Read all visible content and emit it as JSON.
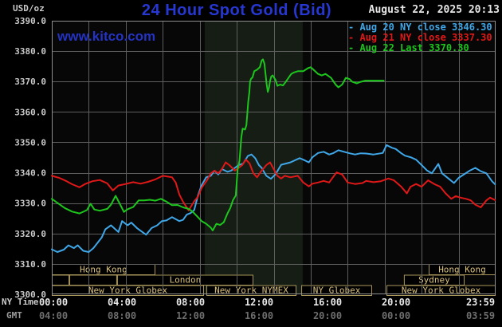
{
  "header": {
    "title": "24 Hour Spot Gold (Bid)",
    "datetime": "August 22, 2025 20:13",
    "watermark": "www.kitco.com"
  },
  "axes": {
    "units_label": "USD/oz",
    "ny_time_label": "NY Time",
    "gmt_label": "GMT",
    "y_tick_labels": [
      "3390.0",
      "3380.0",
      "3370.0",
      "3360.0",
      "3350.0",
      "3340.0",
      "3330.0",
      "3320.0",
      "3310.0",
      "3300.0"
    ],
    "ny_time_ticks": [
      "00:00",
      "04:00",
      "08:00",
      "12:00",
      "16:00",
      "20:00",
      "23:59"
    ],
    "gmt_ticks": [
      "04:00",
      "08:00",
      "12:00",
      "16:00",
      "20:00",
      "00:00",
      "03:59"
    ]
  },
  "legend": {
    "items": [
      {
        "text": "- Aug 20 NY close 3346.30",
        "series": "aug20"
      },
      {
        "text": "- Aug 21 NY close 3337.30",
        "series": "aug21"
      },
      {
        "text": "- Aug 22 Last 3370.30",
        "series": "aug22"
      }
    ]
  },
  "sessions": [
    {
      "row": 0,
      "start_hour": 0,
      "end_hour": 5.6,
      "label": "Hong Kong"
    },
    {
      "row": 0,
      "start_hour": 20.38,
      "end_hour": 24,
      "label": "Hong Kong"
    },
    {
      "row": 1,
      "start_hour": 0,
      "end_hour": 0.95,
      "label": ""
    },
    {
      "row": 1,
      "start_hour": 0.95,
      "end_hour": 3.53,
      "label": ""
    },
    {
      "row": 1,
      "start_hour": 3.53,
      "end_hour": 10.9,
      "label": "London"
    },
    {
      "row": 1,
      "start_hour": 19.04,
      "end_hour": 22.32,
      "label": "Sydney"
    },
    {
      "row": 2,
      "start_hour": 0,
      "end_hour": 8.23,
      "label": "New York Globex"
    },
    {
      "row": 2,
      "start_hour": 8.36,
      "end_hour": 13.23,
      "label": "New York NYMEX"
    },
    {
      "row": 2,
      "start_hour": 13.49,
      "end_hour": 17.32,
      "label": "NY Globex"
    },
    {
      "row": 2,
      "start_hour": 18.1,
      "end_hour": 24,
      "label": "New York Globex"
    }
  ],
  "colors": {
    "background": "#000000",
    "plot_bg": "#070707",
    "grid": "#5e5e5e",
    "plot_border": "#8f8f8f",
    "shaded_region": "#151d15",
    "title_text": "#2737d2",
    "watermark_text": "#2433c4",
    "datetime_text": "#e6e6e6",
    "axis_text": "#c9c9c9",
    "time_text": "#e8e8e8",
    "gmt_text": "#6e6e6e",
    "gmt_label_text": "#9c9c9c",
    "session_border": "#a8965a",
    "session_text": "#d9c17f",
    "aug20": "#3fa7e8",
    "aug21": "#e01818",
    "aug22": "#1dc51d"
  },
  "chart_data": {
    "type": "line",
    "title": "24 Hour Spot Gold (Bid)",
    "ylabel": "USD/oz",
    "x_unit": "hours NY Time",
    "x_range": [
      0,
      24
    ],
    "y_range": [
      3300,
      3390
    ],
    "y_tick_step": 10,
    "x_grid_step_hours": 2,
    "grid": true,
    "legend_position": "top-right",
    "shaded_span_hours": [
      8.27,
      13.57
    ],
    "series": [
      {
        "name": "Aug 20 NY close",
        "close": 3346.3,
        "color_key": "aug20",
        "points": [
          [
            0,
            3314.8
          ],
          [
            0.3,
            3313.9
          ],
          [
            0.65,
            3314.7
          ],
          [
            0.9,
            3316.1
          ],
          [
            1.2,
            3315.2
          ],
          [
            1.4,
            3316.1
          ],
          [
            1.7,
            3314.3
          ],
          [
            2,
            3313.9
          ],
          [
            2.25,
            3315.2
          ],
          [
            2.7,
            3318.7
          ],
          [
            2.9,
            3321.4
          ],
          [
            3.2,
            3322.7
          ],
          [
            3.45,
            3321.3
          ],
          [
            3.6,
            3320.5
          ],
          [
            3.8,
            3324.1
          ],
          [
            4.1,
            3322.7
          ],
          [
            4.3,
            3323.6
          ],
          [
            4.6,
            3321.8
          ],
          [
            4.9,
            3320.5
          ],
          [
            5.1,
            3319.6
          ],
          [
            5.4,
            3321.8
          ],
          [
            5.7,
            3322.7
          ],
          [
            5.95,
            3324.1
          ],
          [
            6.2,
            3324.3
          ],
          [
            6.5,
            3325.4
          ],
          [
            6.9,
            3324.1
          ],
          [
            7.1,
            3324.5
          ],
          [
            7.3,
            3326.2
          ],
          [
            7.5,
            3326.7
          ],
          [
            7.7,
            3327.7
          ],
          [
            7.9,
            3332.4
          ],
          [
            8.1,
            3335.9
          ],
          [
            8.35,
            3338.5
          ],
          [
            8.6,
            3339
          ],
          [
            8.8,
            3340.7
          ],
          [
            9,
            3339.4
          ],
          [
            9.2,
            3341.2
          ],
          [
            9.5,
            3340.3
          ],
          [
            9.7,
            3340.7
          ],
          [
            9.9,
            3341.6
          ],
          [
            10.1,
            3342.5
          ],
          [
            10.35,
            3343
          ],
          [
            10.6,
            3345.5
          ],
          [
            10.8,
            3346
          ],
          [
            11,
            3344.8
          ],
          [
            11.2,
            3342.5
          ],
          [
            11.35,
            3341.6
          ],
          [
            11.6,
            3339
          ],
          [
            11.85,
            3338
          ],
          [
            12.1,
            3339.5
          ],
          [
            12.4,
            3342.6
          ],
          [
            12.9,
            3343.4
          ],
          [
            13.4,
            3344.8
          ],
          [
            13.6,
            3344.3
          ],
          [
            13.9,
            3343.4
          ],
          [
            14.1,
            3345.1
          ],
          [
            14.4,
            3346.5
          ],
          [
            14.7,
            3346.9
          ],
          [
            15,
            3346
          ],
          [
            15.2,
            3346.4
          ],
          [
            15.5,
            3347.4
          ],
          [
            15.8,
            3346.9
          ],
          [
            16.1,
            3346.4
          ],
          [
            16.4,
            3346
          ],
          [
            16.7,
            3346.4
          ],
          [
            17,
            3346.3
          ],
          [
            17.4,
            3346
          ],
          [
            17.9,
            3346.5
          ],
          [
            18.1,
            3349.1
          ],
          [
            18.4,
            3348.2
          ],
          [
            18.6,
            3347.8
          ],
          [
            18.9,
            3346.4
          ],
          [
            19.1,
            3345.6
          ],
          [
            19.4,
            3345.1
          ],
          [
            19.7,
            3344.3
          ],
          [
            20,
            3342.5
          ],
          [
            20.3,
            3340.7
          ],
          [
            20.55,
            3339.8
          ],
          [
            20.9,
            3342.9
          ],
          [
            21.1,
            3339.8
          ],
          [
            21.45,
            3338.1
          ],
          [
            21.75,
            3336.6
          ],
          [
            22,
            3338.3
          ],
          [
            22.3,
            3339.5
          ],
          [
            22.6,
            3340.7
          ],
          [
            22.9,
            3341.6
          ],
          [
            23.2,
            3340.5
          ],
          [
            23.5,
            3339.8
          ],
          [
            23.8,
            3337.2
          ],
          [
            23.97,
            3336.2
          ]
        ]
      },
      {
        "name": "Aug 21 NY close",
        "close": 3337.3,
        "color_key": "aug21",
        "points": [
          [
            0,
            3339
          ],
          [
            0.4,
            3338.3
          ],
          [
            0.8,
            3337.2
          ],
          [
            1.1,
            3336.2
          ],
          [
            1.5,
            3335.2
          ],
          [
            1.8,
            3336.3
          ],
          [
            2.2,
            3337.2
          ],
          [
            2.6,
            3337.6
          ],
          [
            3,
            3336.5
          ],
          [
            3.3,
            3334.2
          ],
          [
            3.6,
            3335.8
          ],
          [
            4,
            3336.3
          ],
          [
            4.4,
            3336.9
          ],
          [
            4.8,
            3336.4
          ],
          [
            5.2,
            3337
          ],
          [
            5.6,
            3337.8
          ],
          [
            6,
            3339
          ],
          [
            6.3,
            3338.7
          ],
          [
            6.5,
            3338.5
          ],
          [
            6.7,
            3336.8
          ],
          [
            6.9,
            3332.8
          ],
          [
            7.1,
            3330.4
          ],
          [
            7.4,
            3327.6
          ],
          [
            7.7,
            3330.6
          ],
          [
            7.9,
            3332.1
          ],
          [
            8.1,
            3335
          ],
          [
            8.4,
            3337.6
          ],
          [
            8.6,
            3339.8
          ],
          [
            8.8,
            3340.7
          ],
          [
            9,
            3339.8
          ],
          [
            9.2,
            3341.2
          ],
          [
            9.4,
            3343.4
          ],
          [
            9.6,
            3342.5
          ],
          [
            9.9,
            3340.7
          ],
          [
            10.1,
            3341.6
          ],
          [
            10.3,
            3342.5
          ],
          [
            10.5,
            3344.3
          ],
          [
            10.7,
            3343
          ],
          [
            10.9,
            3339.8
          ],
          [
            11.1,
            3338.5
          ],
          [
            11.3,
            3340.3
          ],
          [
            11.6,
            3342.5
          ],
          [
            11.8,
            3343.4
          ],
          [
            12,
            3341.2
          ],
          [
            12.2,
            3339
          ],
          [
            12.4,
            3338.1
          ],
          [
            12.6,
            3339
          ],
          [
            12.9,
            3338.5
          ],
          [
            13.3,
            3339
          ],
          [
            13.6,
            3336.8
          ],
          [
            13.9,
            3335.5
          ],
          [
            14.1,
            3336.4
          ],
          [
            14.4,
            3336.8
          ],
          [
            14.7,
            3337.3
          ],
          [
            15,
            3336.8
          ],
          [
            15.2,
            3338.5
          ],
          [
            15.4,
            3340.1
          ],
          [
            15.7,
            3339.4
          ],
          [
            16,
            3336.8
          ],
          [
            16.4,
            3336.3
          ],
          [
            16.8,
            3336.6
          ],
          [
            17,
            3337.3
          ],
          [
            17.4,
            3336.9
          ],
          [
            17.8,
            3337.2
          ],
          [
            18.2,
            3338.1
          ],
          [
            18.5,
            3337.5
          ],
          [
            18.9,
            3335.4
          ],
          [
            19.2,
            3333.2
          ],
          [
            19.4,
            3335.4
          ],
          [
            19.7,
            3336.3
          ],
          [
            20,
            3335.4
          ],
          [
            20.35,
            3337.5
          ],
          [
            20.7,
            3336.2
          ],
          [
            21,
            3335.4
          ],
          [
            21.3,
            3333.2
          ],
          [
            21.6,
            3331.4
          ],
          [
            21.85,
            3332.3
          ],
          [
            22.1,
            3331.8
          ],
          [
            22.4,
            3331.4
          ],
          [
            22.65,
            3330.9
          ],
          [
            22.9,
            3329.5
          ],
          [
            23.2,
            3328.6
          ],
          [
            23.5,
            3330.9
          ],
          [
            23.7,
            3331.8
          ],
          [
            23.97,
            3331
          ]
        ]
      },
      {
        "name": "Aug 22 Last",
        "close": 3370.3,
        "color_key": "aug22",
        "points": [
          [
            0,
            3331.4
          ],
          [
            0.3,
            3330.1
          ],
          [
            0.7,
            3328.4
          ],
          [
            1.1,
            3327.2
          ],
          [
            1.5,
            3326.6
          ],
          [
            1.9,
            3327.7
          ],
          [
            2.1,
            3329.8
          ],
          [
            2.3,
            3327.9
          ],
          [
            2.6,
            3327.5
          ],
          [
            3,
            3328.1
          ],
          [
            3.2,
            3329.5
          ],
          [
            3.45,
            3332.4
          ],
          [
            3.7,
            3329.5
          ],
          [
            3.9,
            3327.1
          ],
          [
            4.1,
            3328
          ],
          [
            4.4,
            3328.7
          ],
          [
            4.7,
            3330.9
          ],
          [
            5,
            3330.9
          ],
          [
            5.3,
            3331.1
          ],
          [
            5.6,
            3330.8
          ],
          [
            5.9,
            3331.4
          ],
          [
            6.2,
            3330.5
          ],
          [
            6.5,
            3329.3
          ],
          [
            6.8,
            3329.4
          ],
          [
            7.1,
            3328.6
          ],
          [
            7.4,
            3328.1
          ],
          [
            7.6,
            3327.3
          ],
          [
            7.9,
            3325.4
          ],
          [
            8.1,
            3324.1
          ],
          [
            8.35,
            3323.2
          ],
          [
            8.6,
            3321.9
          ],
          [
            8.7,
            3321
          ],
          [
            8.9,
            3323.2
          ],
          [
            9.1,
            3322.8
          ],
          [
            9.3,
            3323.7
          ],
          [
            9.5,
            3326.6
          ],
          [
            9.65,
            3328.4
          ],
          [
            9.8,
            3331
          ],
          [
            9.95,
            3332.5
          ],
          [
            10.05,
            3341
          ],
          [
            10.15,
            3344
          ],
          [
            10.25,
            3351.8
          ],
          [
            10.32,
            3354.5
          ],
          [
            10.45,
            3354.2
          ],
          [
            10.52,
            3355.6
          ],
          [
            10.58,
            3359.8
          ],
          [
            10.62,
            3363.3
          ],
          [
            10.68,
            3366.4
          ],
          [
            10.72,
            3369.9
          ],
          [
            10.78,
            3371
          ],
          [
            10.85,
            3371.3
          ],
          [
            10.95,
            3373.4
          ],
          [
            11.1,
            3373.9
          ],
          [
            11.25,
            3374.7
          ],
          [
            11.35,
            3376.9
          ],
          [
            11.42,
            3377.3
          ],
          [
            11.5,
            3375.8
          ],
          [
            11.55,
            3372.8
          ],
          [
            11.62,
            3369
          ],
          [
            11.68,
            3366.6
          ],
          [
            11.75,
            3368.1
          ],
          [
            11.8,
            3370.2
          ],
          [
            11.87,
            3371.7
          ],
          [
            11.95,
            3372
          ],
          [
            12.1,
            3370.5
          ],
          [
            12.2,
            3368.6
          ],
          [
            12.35,
            3369
          ],
          [
            12.5,
            3368.7
          ],
          [
            12.65,
            3369.9
          ],
          [
            12.8,
            3371.2
          ],
          [
            12.95,
            3372.5
          ],
          [
            13.1,
            3373
          ],
          [
            13.3,
            3373.4
          ],
          [
            13.6,
            3373.4
          ],
          [
            13.85,
            3374.4
          ],
          [
            14,
            3374.7
          ],
          [
            14.15,
            3373.9
          ],
          [
            14.4,
            3372.5
          ],
          [
            14.6,
            3372
          ],
          [
            14.8,
            3372.5
          ],
          [
            15.1,
            3371.2
          ],
          [
            15.35,
            3369
          ],
          [
            15.5,
            3368.1
          ],
          [
            15.7,
            3369
          ],
          [
            15.9,
            3371.2
          ],
          [
            16.1,
            3370.8
          ],
          [
            16.25,
            3369.9
          ],
          [
            16.5,
            3369.4
          ],
          [
            16.7,
            3369.9
          ],
          [
            16.95,
            3370.3
          ],
          [
            17.95,
            3370.3
          ]
        ]
      }
    ]
  }
}
